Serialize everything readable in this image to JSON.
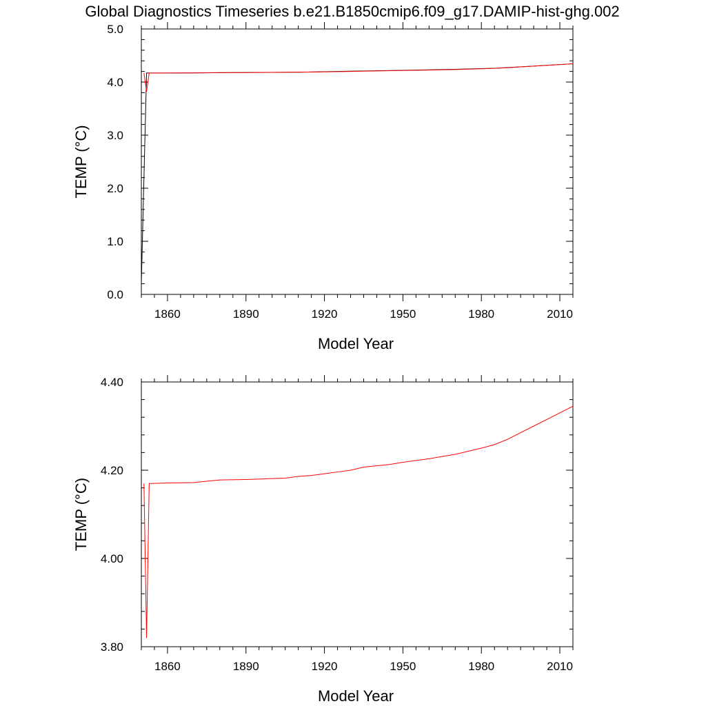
{
  "page": {
    "title": "Global Diagnostics Timeseries b.e21.B1850cmip6.f09_g17.DAMIP-hist-ghg.002"
  },
  "colors": {
    "series_black": "#000000",
    "series_red": "#ff0000",
    "axes": "#000000",
    "background": "#ffffff"
  },
  "chart_data": [
    {
      "type": "line",
      "xlabel": "Model Year",
      "ylabel": "TEMP (°C)",
      "xlim": [
        1850,
        2015
      ],
      "ylim": [
        0.0,
        5.0
      ],
      "x_ticks": [
        1860,
        1890,
        1920,
        1950,
        1980,
        2010
      ],
      "y_ticks": [
        "0.0",
        "1.0",
        "2.0",
        "3.0",
        "4.0",
        "5.0"
      ],
      "grid": false,
      "series": [
        {
          "color": "#000000",
          "x": [
            1850,
            1851,
            1852,
            1855,
            1870,
            1890,
            1910,
            1930,
            1950,
            1970,
            1985,
            2000,
            2015
          ],
          "y": [
            0.2,
            2.2,
            4.17,
            4.17,
            4.172,
            4.18,
            4.185,
            4.205,
            4.22,
            4.24,
            4.26,
            4.3,
            4.345
          ]
        },
        {
          "color": "#ff0000",
          "x": [
            1851,
            1852,
            1853,
            1854,
            1860,
            1870,
            1880,
            1890,
            1900,
            1910,
            1920,
            1930,
            1940,
            1950,
            1960,
            1970,
            1980,
            1985,
            1990,
            1995,
            2000,
            2005,
            2010,
            2015
          ],
          "y": [
            4.17,
            3.82,
            4.17,
            4.17,
            4.171,
            4.172,
            4.178,
            4.179,
            4.181,
            4.186,
            4.192,
            4.2,
            4.21,
            4.218,
            4.226,
            4.236,
            4.25,
            4.258,
            4.27,
            4.285,
            4.3,
            4.315,
            4.33,
            4.345
          ]
        }
      ]
    },
    {
      "type": "line",
      "xlabel": "Model Year",
      "ylabel": "TEMP (°C)",
      "xlim": [
        1850,
        2015
      ],
      "ylim": [
        3.8,
        4.4
      ],
      "x_ticks": [
        1860,
        1890,
        1920,
        1950,
        1980,
        2010
      ],
      "y_ticks": [
        "3.80",
        "4.00",
        "4.20",
        "4.40"
      ],
      "grid": false,
      "series": [
        {
          "color": "#ff0000",
          "x": [
            1851,
            1852,
            1853,
            1854,
            1860,
            1870,
            1880,
            1890,
            1900,
            1905,
            1910,
            1915,
            1920,
            1925,
            1930,
            1935,
            1940,
            1945,
            1950,
            1955,
            1960,
            1965,
            1970,
            1975,
            1980,
            1985,
            1990,
            1995,
            2000,
            2005,
            2010,
            2015
          ],
          "y": [
            4.17,
            3.82,
            4.17,
            4.17,
            4.171,
            4.172,
            4.178,
            4.179,
            4.181,
            4.182,
            4.186,
            4.188,
            4.192,
            4.196,
            4.2,
            4.207,
            4.21,
            4.213,
            4.218,
            4.222,
            4.226,
            4.231,
            4.236,
            4.243,
            4.25,
            4.258,
            4.27,
            4.285,
            4.3,
            4.315,
            4.33,
            4.345
          ]
        }
      ]
    }
  ]
}
